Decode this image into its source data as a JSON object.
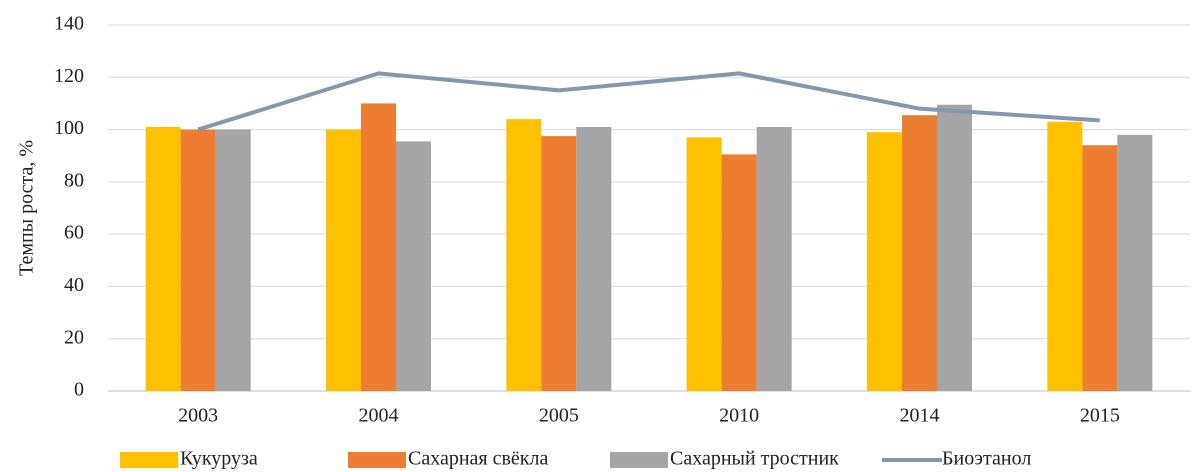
{
  "chart_data": {
    "type": "bar_line",
    "y_label": "Темпы роста, %",
    "categories": [
      "2003",
      "2004",
      "2005",
      "2010",
      "2014",
      "2015"
    ],
    "series": [
      {
        "name": "Кукуруза",
        "color": "#ffc000",
        "type": "bar",
        "values": [
          101,
          100,
          104,
          97,
          99,
          103
        ]
      },
      {
        "name": "Сахарная свёкла",
        "color": "#ed7d31",
        "type": "bar",
        "values": [
          100,
          110,
          97.5,
          90.5,
          105.5,
          94
        ]
      },
      {
        "name": "Сахарный тростник",
        "color": "#a5a5a5",
        "type": "bar",
        "values": [
          100,
          95.5,
          101,
          101,
          109.5,
          98
        ]
      },
      {
        "name": "Биоэтанол",
        "color": "#8497b0",
        "type": "line",
        "values": [
          100,
          121.5,
          115,
          121.5,
          108,
          103.5
        ]
      }
    ],
    "ylim": [
      0,
      140
    ],
    "yticks": [
      0,
      20,
      40,
      60,
      80,
      100,
      120,
      140
    ],
    "grid": true,
    "legend": "bottom"
  }
}
